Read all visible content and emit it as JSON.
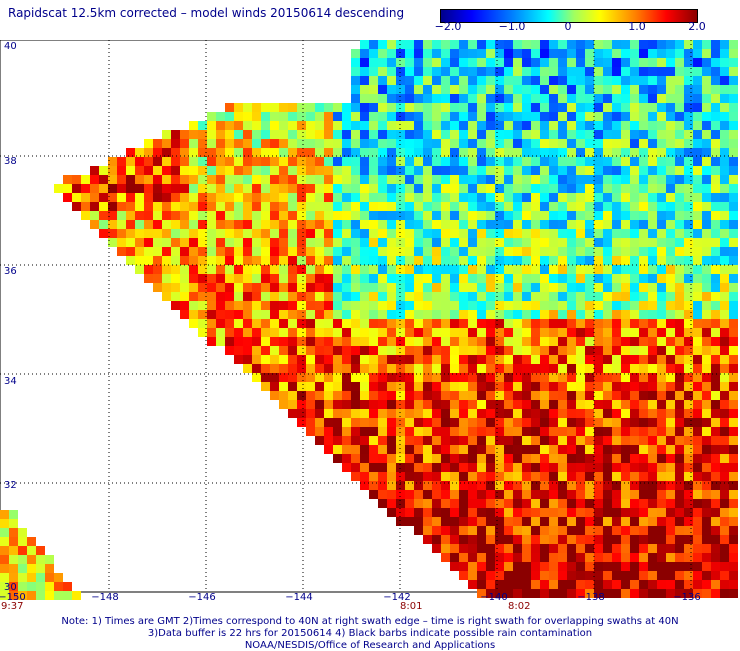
{
  "title": "Rapidscat 12.5km corrected – model winds 20150614 descending",
  "colorbar": {
    "labels": [
      "−2.0",
      "−1.0",
      "0",
      "1.0",
      "2.0"
    ],
    "range": [
      -2.0,
      2.0
    ]
  },
  "axes": {
    "x_ticks": [
      "−150",
      "−148",
      "−146",
      "−144",
      "−142",
      "−140",
      "−138",
      "−136"
    ],
    "y_ticks": [
      "40",
      "38",
      "36",
      "34",
      "32",
      "30"
    ],
    "lon_range": [
      -150,
      -135
    ],
    "lat_range": [
      30,
      40
    ]
  },
  "times": [
    "9:37",
    "8:01",
    "8:02"
  ],
  "notes": [
    "Note: 1) Times are GMT 2)Times correspond to 40N at right swath edge – time is right swath for overlapping swaths at 40N",
    "3)Data buffer is 22 hrs for 20150614 4) Black barbs indicate possible rain contamination",
    "NOAA/NESDIS/Office of Research and Applications"
  ]
}
